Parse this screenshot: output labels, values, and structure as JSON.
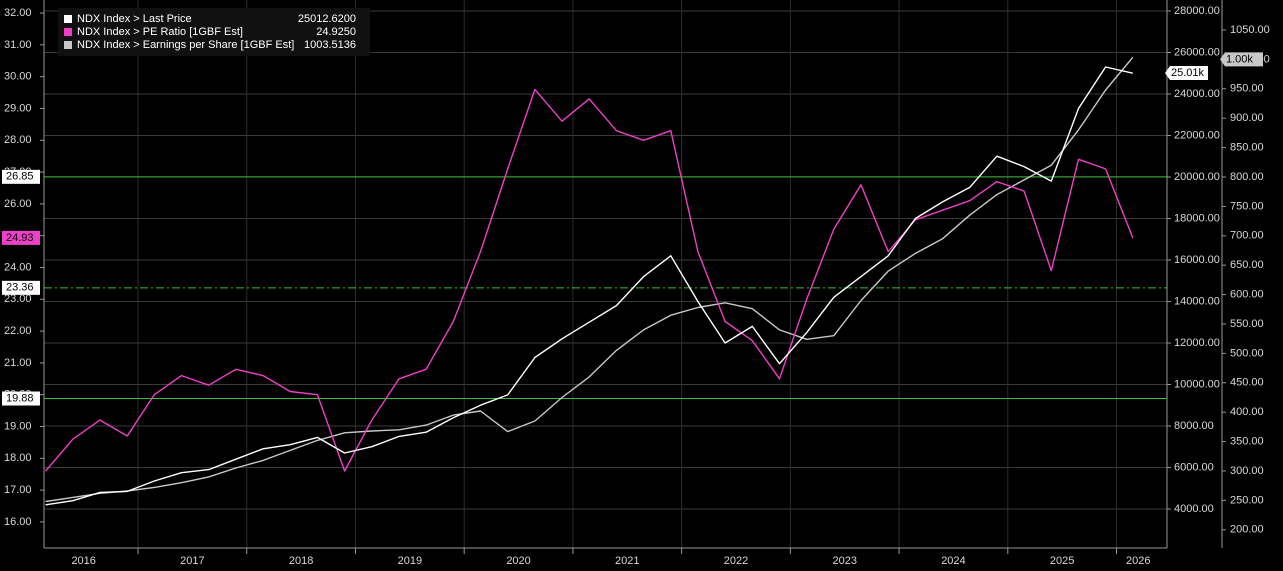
{
  "chart_data": {
    "type": "line",
    "x": [
      2016.15,
      2016.4,
      2016.65,
      2016.9,
      2017.15,
      2017.4,
      2017.65,
      2017.9,
      2018.15,
      2018.4,
      2018.65,
      2018.9,
      2019.15,
      2019.4,
      2019.65,
      2019.9,
      2020.15,
      2020.4,
      2020.65,
      2020.9,
      2021.15,
      2021.4,
      2021.65,
      2021.9,
      2022.15,
      2022.4,
      2022.65,
      2022.9,
      2023.15,
      2023.4,
      2023.65,
      2023.9,
      2024.15,
      2024.4,
      2024.65,
      2024.9,
      2025.15,
      2025.4,
      2025.65,
      2025.9,
      2026.15
    ],
    "xlim": [
      2016.135,
      2026.4
    ],
    "xticks": [
      {
        "value": 2016.5,
        "label": "2016"
      },
      {
        "value": 2017.5,
        "label": "2017"
      },
      {
        "value": 2018.5,
        "label": "2018"
      },
      {
        "value": 2019.5,
        "label": "2019"
      },
      {
        "value": 2020.5,
        "label": "2020"
      },
      {
        "value": 2021.5,
        "label": "2021"
      },
      {
        "value": 2022.5,
        "label": "2022"
      },
      {
        "value": 2023.5,
        "label": "2023"
      },
      {
        "value": 2024.5,
        "label": "2024"
      },
      {
        "value": 2025.5,
        "label": "2025"
      },
      {
        "value": 2026.2,
        "label": "2026"
      }
    ],
    "ylim": [
      15.18,
      32.41
    ],
    "yticks": [
      {
        "value": 16,
        "label": "16.00"
      },
      {
        "value": 17,
        "label": "17.00"
      },
      {
        "value": 18,
        "label": "18.00"
      },
      {
        "value": 19,
        "label": "19.00"
      },
      {
        "value": 20,
        "label": "20.00"
      },
      {
        "value": 21,
        "label": "21.00"
      },
      {
        "value": 22,
        "label": "22.00"
      },
      {
        "value": 23,
        "label": "23.00"
      },
      {
        "value": 24,
        "label": "24.00"
      },
      {
        "value": 25,
        "label": "25.00"
      },
      {
        "value": 26,
        "label": "26.00"
      },
      {
        "value": 27,
        "label": "27.00"
      },
      {
        "value": 28,
        "label": "28.00"
      },
      {
        "value": 29,
        "label": "29.00"
      },
      {
        "value": 30,
        "label": "30.00"
      },
      {
        "value": 31,
        "label": "31.00"
      },
      {
        "value": 32,
        "label": "32.00"
      }
    ],
    "y2lim": [
      2120,
      28530
    ],
    "y2ticks": [
      {
        "value": 4000,
        "label": "4000.00"
      },
      {
        "value": 6000,
        "label": "6000.00"
      },
      {
        "value": 8000,
        "label": "8000.00"
      },
      {
        "value": 10000,
        "label": "10000.00"
      },
      {
        "value": 12000,
        "label": "12000.00"
      },
      {
        "value": 14000,
        "label": "14000.00"
      },
      {
        "value": 16000,
        "label": "16000.00"
      },
      {
        "value": 18000,
        "label": "18000.00"
      },
      {
        "value": 20000,
        "label": "20000.00"
      },
      {
        "value": 22000,
        "label": "22000.00"
      },
      {
        "value": 24000,
        "label": "24000.00"
      },
      {
        "value": 26000,
        "label": "26000.00"
      },
      {
        "value": 28000,
        "label": "28000.00"
      }
    ],
    "y3lim": [
      169,
      1101
    ],
    "y3ticks": [
      {
        "value": 200,
        "label": "200.00"
      },
      {
        "value": 250,
        "label": "250.00"
      },
      {
        "value": 300,
        "label": "300.00"
      },
      {
        "value": 350,
        "label": "350.00"
      },
      {
        "value": 400,
        "label": "400.00"
      },
      {
        "value": 450,
        "label": "450.00"
      },
      {
        "value": 500,
        "label": "500.00"
      },
      {
        "value": 550,
        "label": "550.00"
      },
      {
        "value": 600,
        "label": "600.00"
      },
      {
        "value": 650,
        "label": "650.00"
      },
      {
        "value": 700,
        "label": "700.00"
      },
      {
        "value": 750,
        "label": "750.00"
      },
      {
        "value": 800,
        "label": "800.00"
      },
      {
        "value": 850,
        "label": "850.00"
      },
      {
        "value": 900,
        "label": "900.00"
      },
      {
        "value": 950,
        "label": "950.00"
      },
      {
        "value": 1000,
        "label": "1000.00"
      },
      {
        "value": 1050,
        "label": "1050.00"
      }
    ],
    "grid": true,
    "hlines": [
      26.85,
      23.36,
      19.88
    ],
    "hline_styles": [
      "solid",
      "dashdot",
      "solid"
    ],
    "hline_color": "#3cbf3c",
    "series": [
      {
        "name": "NDX Index > Last Price",
        "color": "#ffffff",
        "axis": "y2",
        "legend_value": {
          "value": 25012.62,
          "label": "25012.6200"
        },
        "last_label": {
          "value": 25010,
          "label": "25.01k"
        },
        "values": [
          4200,
          4400,
          4800,
          4850,
          5350,
          5750,
          5900,
          6400,
          6900,
          7100,
          7450,
          6700,
          7000,
          7500,
          7700,
          8400,
          9000,
          9500,
          11300,
          12200,
          13000,
          13800,
          15200,
          16200,
          14000,
          12000,
          12800,
          11000,
          12500,
          14200,
          15200,
          16200,
          18000,
          18800,
          19500,
          21000,
          20500,
          19800,
          23300,
          25300,
          25000
        ]
      },
      {
        "name": "NDX Index > PE Ratio [1GBF Est]",
        "color": "#ee3fc8",
        "axis": "y",
        "legend_value": {
          "value": 24.925,
          "label": "24.9250"
        },
        "last_label": 24.93,
        "values": [
          17.6,
          18.6,
          19.2,
          18.7,
          20.0,
          20.6,
          20.3,
          20.8,
          20.6,
          20.1,
          20.0,
          17.6,
          19.2,
          20.5,
          20.8,
          22.3,
          24.5,
          27.1,
          29.6,
          28.6,
          29.3,
          28.3,
          28.0,
          28.3,
          24.5,
          22.3,
          21.7,
          20.5,
          23.0,
          25.2,
          26.6,
          24.5,
          25.5,
          25.8,
          26.1,
          26.7,
          26.4,
          23.9,
          27.4,
          27.1,
          24.93
        ]
      },
      {
        "name": "NDX Index > Earnings per Share [1GBF Est]",
        "color": "#c8c8c8",
        "axis": "y3",
        "legend_value": {
          "value": 1003.5136,
          "label": "1003.5136"
        },
        "last_label": {
          "value": 1000,
          "label": "1.00k"
        },
        "values": [
          248,
          255,
          262,
          266,
          272,
          280,
          290,
          305,
          318,
          335,
          352,
          365,
          368,
          370,
          378,
          395,
          402,
          367,
          385,
          425,
          460,
          505,
          540,
          565,
          578,
          586,
          576,
          540,
          524,
          530,
          590,
          640,
          670,
          695,
          735,
          770,
          795,
          820,
          880,
          948,
          1003.5
        ]
      }
    ]
  }
}
